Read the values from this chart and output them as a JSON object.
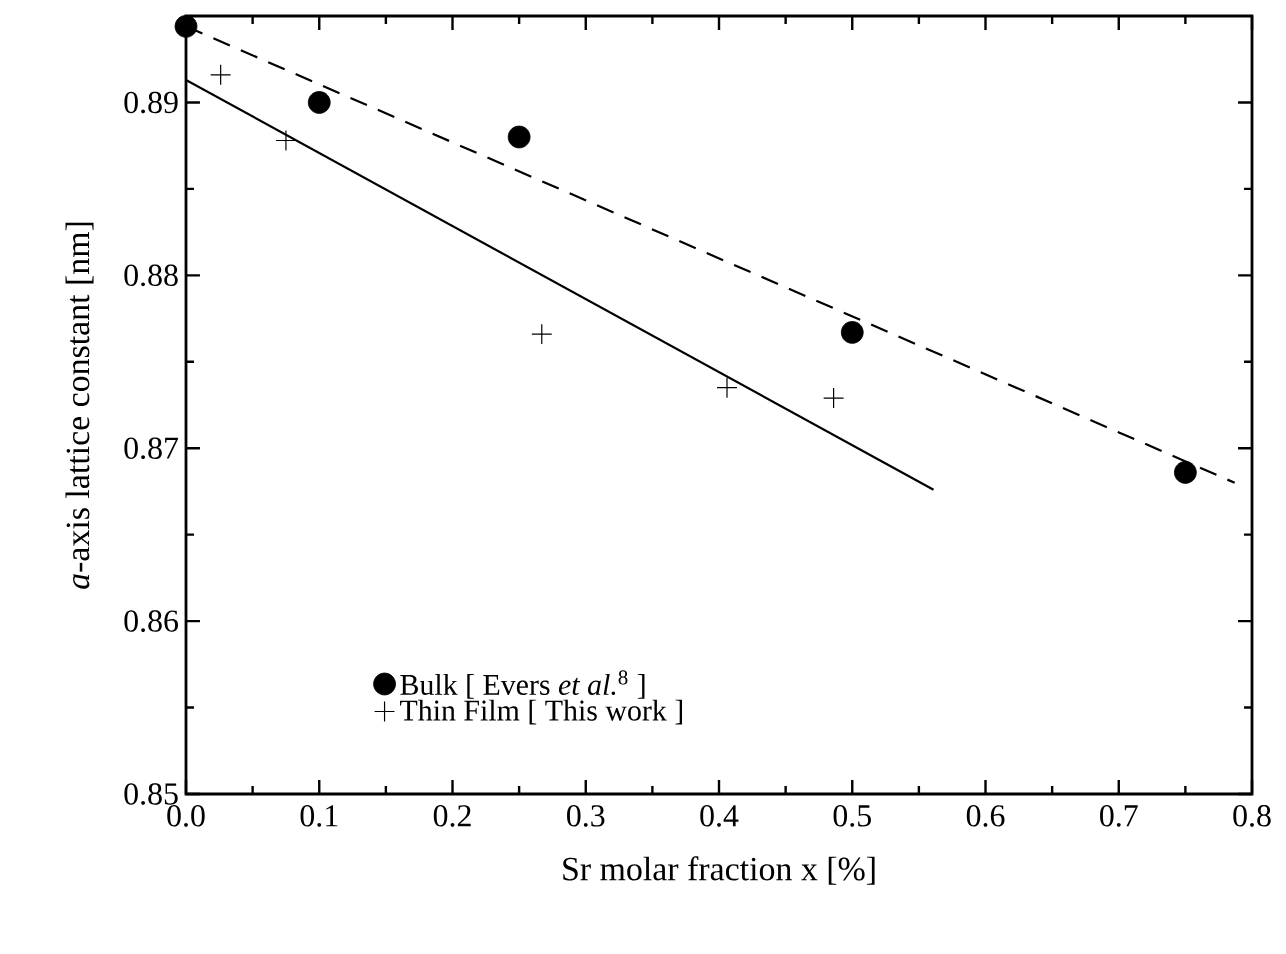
{
  "chart_data": {
    "type": "scatter",
    "xlabel": "Sr molar fraction x [%]",
    "ylabel": "*a*-axis lattice constant [nm]",
    "xlim": [
      0,
      0.8
    ],
    "ylim": [
      0.85,
      0.895
    ],
    "xticks": [
      {
        "value": 0,
        "label": "0.0"
      },
      0.1,
      0.2,
      0.3,
      0.4,
      0.5,
      0.6,
      0.7,
      0.8
    ],
    "yticks": [
      0.85,
      0.86,
      0.87,
      0.88,
      0.89
    ],
    "legend": "bottom left",
    "grid": false,
    "series": [
      {
        "name": "Bulk [ Evers *et al.*$^{8}$ ]",
        "marker": "circle",
        "color": "#000000",
        "x": [
          0,
          0.1,
          0.25,
          0.5,
          0.75
        ],
        "values": [
          0.8944,
          0.89,
          0.888,
          0.8767,
          0.8686
        ]
      },
      {
        "name": "Thin Film [ This work ]",
        "marker": "cross",
        "color": "#000000",
        "x": [
          0.026,
          0.075,
          0.267,
          0.406,
          0.486
        ],
        "values": [
          0.8916,
          0.8878,
          0.8766,
          0.8735,
          0.8729
        ]
      },
      {
        "type": "line",
        "line_style": "solid",
        "marker": "none",
        "color": "#000000",
        "x": [
          0,
          0.561
        ],
        "values": [
          0.8913,
          0.8676
        ]
      },
      {
        "type": "line",
        "line_style": "dashed",
        "marker": "none",
        "color": "#000000",
        "x": [
          0,
          0.787
        ],
        "values": [
          0.8944,
          0.868
        ]
      }
    ]
  }
}
